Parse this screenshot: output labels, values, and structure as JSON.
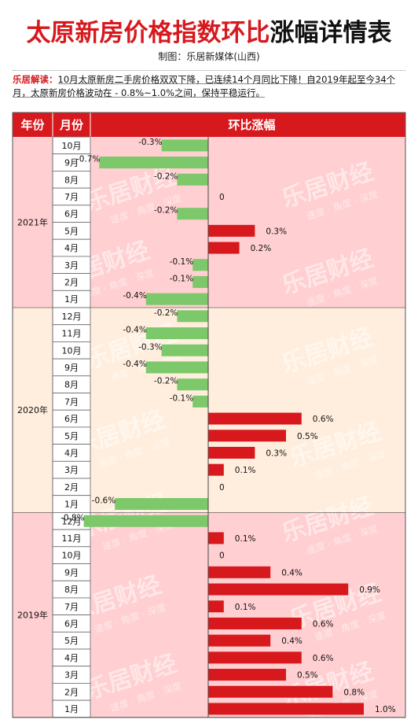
{
  "title": {
    "part1": "太原新房价格指数环比",
    "part2": "涨幅详情表"
  },
  "credit": "制图：乐居新媒体(山西)",
  "note": {
    "label": "乐居解读：",
    "text": "10月太原新房二手房价格双双下降，已连续14个月同比下降！自2019年起至今34个月，太原新房价格波动在 - 0.8%~1.0%之间，保持平稳运行。"
  },
  "watermark": {
    "logo": "乐居财经",
    "slogan": "速度 · 角度 · 深度"
  },
  "colors": {
    "header": "#d7191e",
    "year_2021_bg": "#ffcfd1",
    "year_2020_bg": "#ffeedd",
    "year_2019_bg": "#ffcfd1",
    "positive_bar": "#d7191e",
    "negative_bar": "#7cc86a"
  },
  "chart_data": {
    "type": "bar",
    "orientation": "horizontal",
    "columns": [
      "年份",
      "月份",
      "环比涨幅"
    ],
    "groups": [
      {
        "year": "2021年",
        "rows": [
          {
            "month": "10月",
            "value": -0.3,
            "label": "-0.3%"
          },
          {
            "month": "9月",
            "value": -0.7,
            "label": "-0.7%"
          },
          {
            "month": "8月",
            "value": -0.2,
            "label": "-0.2%"
          },
          {
            "month": "7月",
            "value": 0,
            "label": "0"
          },
          {
            "month": "6月",
            "value": -0.2,
            "label": "-0.2%"
          },
          {
            "month": "5月",
            "value": 0.3,
            "label": "0.3%"
          },
          {
            "month": "4月",
            "value": 0.2,
            "label": "0.2%"
          },
          {
            "month": "3月",
            "value": -0.1,
            "label": "-0.1%"
          },
          {
            "month": "2月",
            "value": -0.1,
            "label": "-0.1%"
          },
          {
            "month": "1月",
            "value": -0.4,
            "label": "-0.4%"
          }
        ]
      },
      {
        "year": "2020年",
        "rows": [
          {
            "month": "12月",
            "value": -0.2,
            "label": "-0.2%"
          },
          {
            "month": "11月",
            "value": -0.4,
            "label": "-0.4%"
          },
          {
            "month": "10月",
            "value": -0.3,
            "label": "-0.3%"
          },
          {
            "month": "9月",
            "value": -0.4,
            "label": "-0.4%"
          },
          {
            "month": "8月",
            "value": -0.2,
            "label": "-0.2%"
          },
          {
            "month": "7月",
            "value": -0.1,
            "label": "-0.1%"
          },
          {
            "month": "6月",
            "value": 0.6,
            "label": "0.6%"
          },
          {
            "month": "5月",
            "value": 0.5,
            "label": "0.5%"
          },
          {
            "month": "4月",
            "value": 0.3,
            "label": "0.3%"
          },
          {
            "month": "3月",
            "value": 0.1,
            "label": "0.1%"
          },
          {
            "month": "2月",
            "value": 0,
            "label": "0"
          },
          {
            "month": "1月",
            "value": -0.6,
            "label": "-0.6%"
          }
        ]
      },
      {
        "year": "2019年",
        "rows": [
          {
            "month": "12月",
            "value": -0.8,
            "label": "-0.8%"
          },
          {
            "month": "11月",
            "value": 0.1,
            "label": "0.1%"
          },
          {
            "month": "10月",
            "value": 0,
            "label": "0"
          },
          {
            "month": "9月",
            "value": 0.4,
            "label": "0.4%"
          },
          {
            "month": "8月",
            "value": 0.9,
            "label": "0.9%"
          },
          {
            "month": "7月",
            "value": 0.1,
            "label": "0.1%"
          },
          {
            "month": "6月",
            "value": 0.6,
            "label": "0.6%"
          },
          {
            "month": "5月",
            "value": 0.4,
            "label": "0.4%"
          },
          {
            "month": "4月",
            "value": 0.6,
            "label": "0.6%"
          },
          {
            "month": "3月",
            "value": 0.5,
            "label": "0.5%"
          },
          {
            "month": "2月",
            "value": 0.8,
            "label": "0.8%"
          },
          {
            "month": "1月",
            "value": 1.0,
            "label": "1.0%"
          }
        ]
      }
    ],
    "value_unit": "%",
    "grid": false,
    "legend": "none"
  }
}
